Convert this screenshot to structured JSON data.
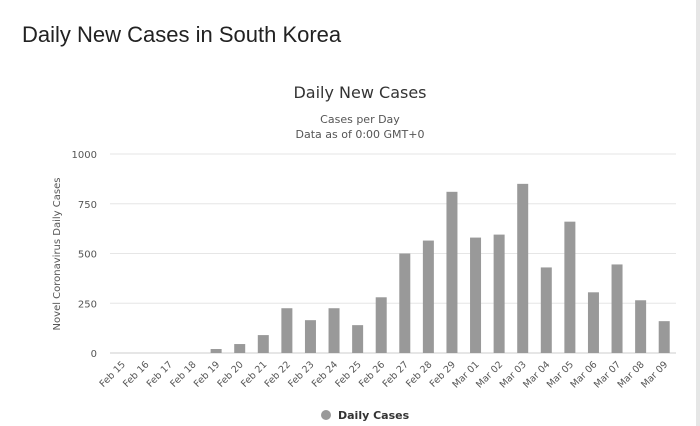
{
  "page": {
    "heading": "Daily New Cases in South Korea"
  },
  "chart_data": {
    "type": "bar",
    "title": "Daily New Cases",
    "subtitle_lines": [
      "Cases per Day",
      "Data as of 0:00 GMT+0"
    ],
    "xlabel": "",
    "ylabel": "Novel Coronavirus Daily Cases",
    "categories": [
      "Feb 15",
      "Feb 16",
      "Feb 17",
      "Feb 18",
      "Feb 19",
      "Feb 20",
      "Feb 21",
      "Feb 22",
      "Feb 23",
      "Feb 24",
      "Feb 25",
      "Feb 26",
      "Feb 27",
      "Feb 28",
      "Feb 29",
      "Mar 01",
      "Mar 02",
      "Mar 03",
      "Mar 04",
      "Mar 05",
      "Mar 06",
      "Mar 07",
      "Mar 08",
      "Mar 09"
    ],
    "series": [
      {
        "name": "Daily Cases",
        "color": "#999999",
        "values": [
          0,
          0,
          0,
          0,
          20,
          45,
          90,
          225,
          165,
          225,
          140,
          280,
          500,
          565,
          810,
          580,
          595,
          850,
          430,
          660,
          305,
          445,
          265,
          160
        ]
      }
    ],
    "yticks": [
      0,
      250,
      500,
      750,
      1000
    ],
    "ylim": [
      0,
      1000
    ],
    "grid": true,
    "legend": "bottom-center"
  }
}
